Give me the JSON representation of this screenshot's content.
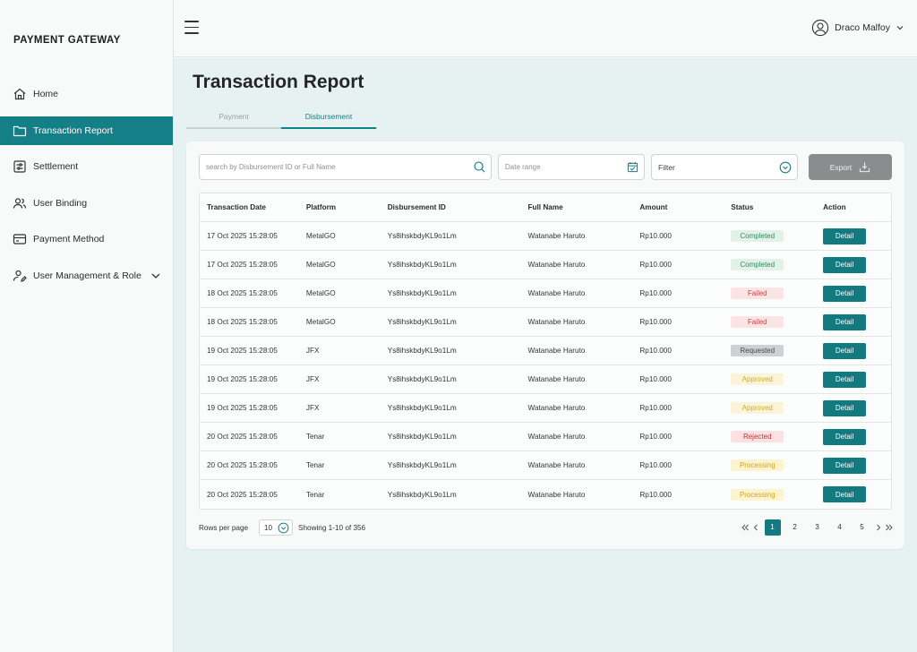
{
  "brand": "PAYMENT GATEWAY",
  "colors": {
    "primary": "#147f86",
    "content_bg": "#e6f1f1",
    "export_disabled": "#8a8d8d"
  },
  "sidebar": {
    "items": [
      {
        "label": "Home",
        "icon": "home-icon"
      },
      {
        "label": "Transaction Report",
        "icon": "folder-icon",
        "active": true
      },
      {
        "label": "Settlement",
        "icon": "settlement-icon"
      },
      {
        "label": "User Binding",
        "icon": "users-icon"
      },
      {
        "label": "Payment Method",
        "icon": "card-icon"
      },
      {
        "label": "User Management & Role",
        "icon": "user-edit-icon",
        "expandable": true
      }
    ]
  },
  "header": {
    "user_name": "Draco Malfoy"
  },
  "page": {
    "title": "Transaction Report",
    "tabs": [
      {
        "label": "Payment",
        "active": false
      },
      {
        "label": "Disbursement",
        "active": true
      }
    ]
  },
  "toolbar": {
    "search_placeholder": "search by Disbursement ID or Full Name",
    "date_placeholder": "Date range",
    "filter_label": "Filter",
    "export_label": "Export"
  },
  "table": {
    "columns": [
      "Transaction Date",
      "Platform",
      "Disbursement ID",
      "Full Name",
      "Amount",
      "Status",
      "Action"
    ],
    "rows": [
      {
        "date": "17 Oct 2025 15:28:05",
        "platform": "MetalGO",
        "id": "Ys8ihskbdyKL9o1Lm",
        "name": "Watanabe Haruto",
        "amount": "Rp10.000",
        "status": "Completed",
        "action": "Detail"
      },
      {
        "date": "17 Oct 2025 15:28:05",
        "platform": "MetalGO",
        "id": "Ys8ihskbdyKL9o1Lm",
        "name": "Watanabe Haruto",
        "amount": "Rp10.000",
        "status": "Completed",
        "action": "Detail"
      },
      {
        "date": "18 Oct 2025 15:28:05",
        "platform": "MetalGO",
        "id": "Ys8ihskbdyKL9o1Lm",
        "name": "Watanabe Haruto",
        "amount": "Rp10.000",
        "status": "Failed",
        "action": "Detail"
      },
      {
        "date": "18 Oct 2025 15:28:05",
        "platform": "MetalGO",
        "id": "Ys8ihskbdyKL9o1Lm",
        "name": "Watanabe Haruto",
        "amount": "Rp10.000",
        "status": "Failed",
        "action": "Detail"
      },
      {
        "date": "19 Oct 2025 15:28:05",
        "platform": "JFX",
        "id": "Ys8ihskbdyKL9o1Lm",
        "name": "Watanabe Haruto",
        "amount": "Rp10.000",
        "status": "Requested",
        "action": "Detail"
      },
      {
        "date": "19 Oct 2025 15:28:05",
        "platform": "JFX",
        "id": "Ys8ihskbdyKL9o1Lm",
        "name": "Watanabe Haruto",
        "amount": "Rp10.000",
        "status": "Approved",
        "action": "Detail"
      },
      {
        "date": "19 Oct 2025 15:28:05",
        "platform": "JFX",
        "id": "Ys8ihskbdyKL9o1Lm",
        "name": "Watanabe Haruto",
        "amount": "Rp10.000",
        "status": "Approved",
        "action": "Detail"
      },
      {
        "date": "20 Oct 2025 15:28:05",
        "platform": "Tenar",
        "id": "Ys8ihskbdyKL9o1Lm",
        "name": "Watanabe Haruto",
        "amount": "Rp10.000",
        "status": "Rejected",
        "action": "Detail"
      },
      {
        "date": "20 Oct 2025 15:28:05",
        "platform": "Tenar",
        "id": "Ys8ihskbdyKL9o1Lm",
        "name": "Watanabe Haruto",
        "amount": "Rp10.000",
        "status": "Processing",
        "action": "Detail"
      },
      {
        "date": "20 Oct 2025 15:28:05",
        "platform": "Tenar",
        "id": "Ys8ihskbdyKL9o1Lm",
        "name": "Watanabe Haruto",
        "amount": "Rp10.000",
        "status": "Processing",
        "action": "Detail"
      }
    ]
  },
  "pagination": {
    "rows_per_page_label": "Rows per page",
    "rows_per_page_value": "10",
    "showing": "Showing 1-10 of 356",
    "pages": [
      "1",
      "2",
      "3",
      "4",
      "5"
    ],
    "current_page": "1"
  }
}
